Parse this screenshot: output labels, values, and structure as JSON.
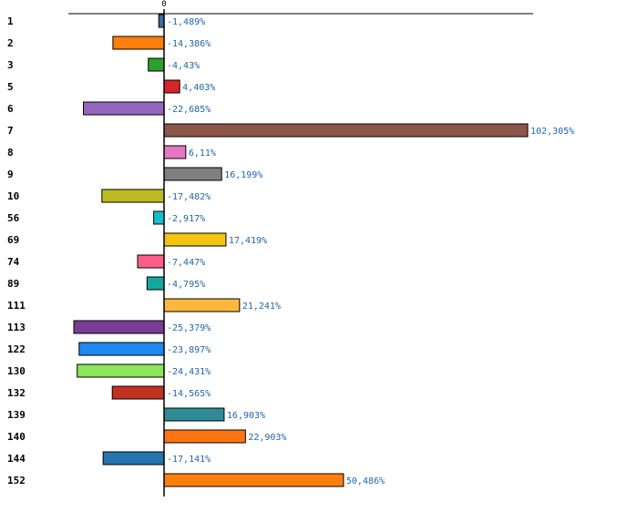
{
  "chart_data": {
    "type": "bar",
    "orientation": "horizontal",
    "title": "",
    "xlabel": "",
    "ylabel": "",
    "zero_label": "0",
    "xlim": [
      -28,
      110
    ],
    "categories": [
      "1",
      "2",
      "3",
      "5",
      "6",
      "7",
      "8",
      "9",
      "10",
      "56",
      "69",
      "74",
      "89",
      "111",
      "113",
      "122",
      "130",
      "132",
      "139",
      "140",
      "144",
      "152"
    ],
    "values": [
      -1.489,
      -14.386,
      -4.43,
      4.403,
      -22.685,
      102.305,
      6.11,
      16.199,
      -17.482,
      -2.917,
      17.419,
      -7.447,
      -4.795,
      21.241,
      -25.379,
      -23.897,
      -24.431,
      -14.565,
      16.903,
      22.903,
      -17.141,
      50.486
    ],
    "value_labels": [
      "-1,489%",
      "-14,386%",
      "-4,43%",
      "4,403%",
      "-22,685%",
      "102,305%",
      "6,11%",
      "16,199%",
      "-17,482%",
      "-2,917%",
      "17,419%",
      "-7,447%",
      "-4,795%",
      "21,241%",
      "-25,379%",
      "-23,897%",
      "-24,431%",
      "-14,565%",
      "16,903%",
      "22,903%",
      "-17,141%",
      "50,486%"
    ],
    "colors": [
      "#3a6ea5",
      "#ff7f0e",
      "#2ca02c",
      "#d62728",
      "#9467bd",
      "#8c564b",
      "#e377c2",
      "#7f7f7f",
      "#bcbd22",
      "#17becf",
      "#f2c40f",
      "#ff5c8a",
      "#16a89e",
      "#fdb73e",
      "#7b3c97",
      "#1e87f0",
      "#8ae65a",
      "#c0321f",
      "#2f8b96",
      "#ff7410",
      "#2574ad",
      "#ff7f0e"
    ],
    "grid": false,
    "legend": "none"
  }
}
